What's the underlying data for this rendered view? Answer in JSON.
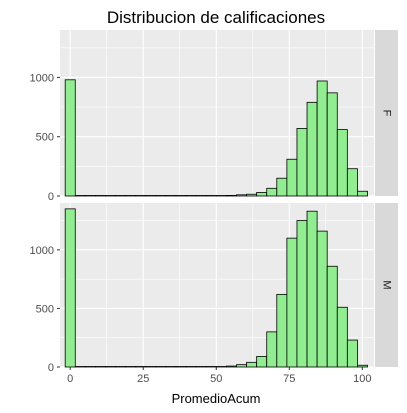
{
  "chart_data": {
    "type": "bar",
    "title": "Distribucion de calificaciones",
    "xlabel": "PromedioAcum",
    "ylabel": "",
    "xlim": [
      -3.5,
      104
    ],
    "ylim": [
      0,
      1400
    ],
    "xticks": [
      0,
      25,
      50,
      75,
      100
    ],
    "yticks": [
      0,
      500,
      1000
    ],
    "grid": true,
    "legend": "none",
    "colors": {
      "fill": "#90EE90",
      "outline": "#000000",
      "panel_bg": "#EBEBEB",
      "grid": "#FFFFFF",
      "strip_bg": "#D9D9D9"
    },
    "bin_width": 3.45,
    "bin_centers": [
      0,
      3.45,
      6.9,
      10.35,
      13.8,
      17.25,
      20.7,
      24.15,
      27.6,
      31.05,
      34.5,
      37.95,
      41.4,
      44.85,
      48.3,
      51.75,
      55.2,
      58.65,
      62.1,
      65.55,
      69,
      72.45,
      75.9,
      79.35,
      82.8,
      86.25,
      89.7,
      93.15,
      96.6,
      100.05
    ],
    "panels": [
      {
        "facet": "F",
        "values": [
          980,
          0,
          0,
          0,
          0,
          0,
          0,
          0,
          0,
          0,
          0,
          0,
          0,
          0,
          0,
          2,
          5,
          10,
          15,
          30,
          65,
          150,
          310,
          570,
          790,
          970,
          870,
          560,
          230,
          40
        ]
      },
      {
        "facet": "M",
        "values": [
          1350,
          0,
          0,
          0,
          0,
          0,
          0,
          0,
          0,
          0,
          0,
          0,
          0,
          0,
          0,
          2,
          8,
          20,
          40,
          90,
          300,
          620,
          1100,
          1250,
          1330,
          1160,
          860,
          510,
          230,
          15
        ]
      }
    ]
  }
}
